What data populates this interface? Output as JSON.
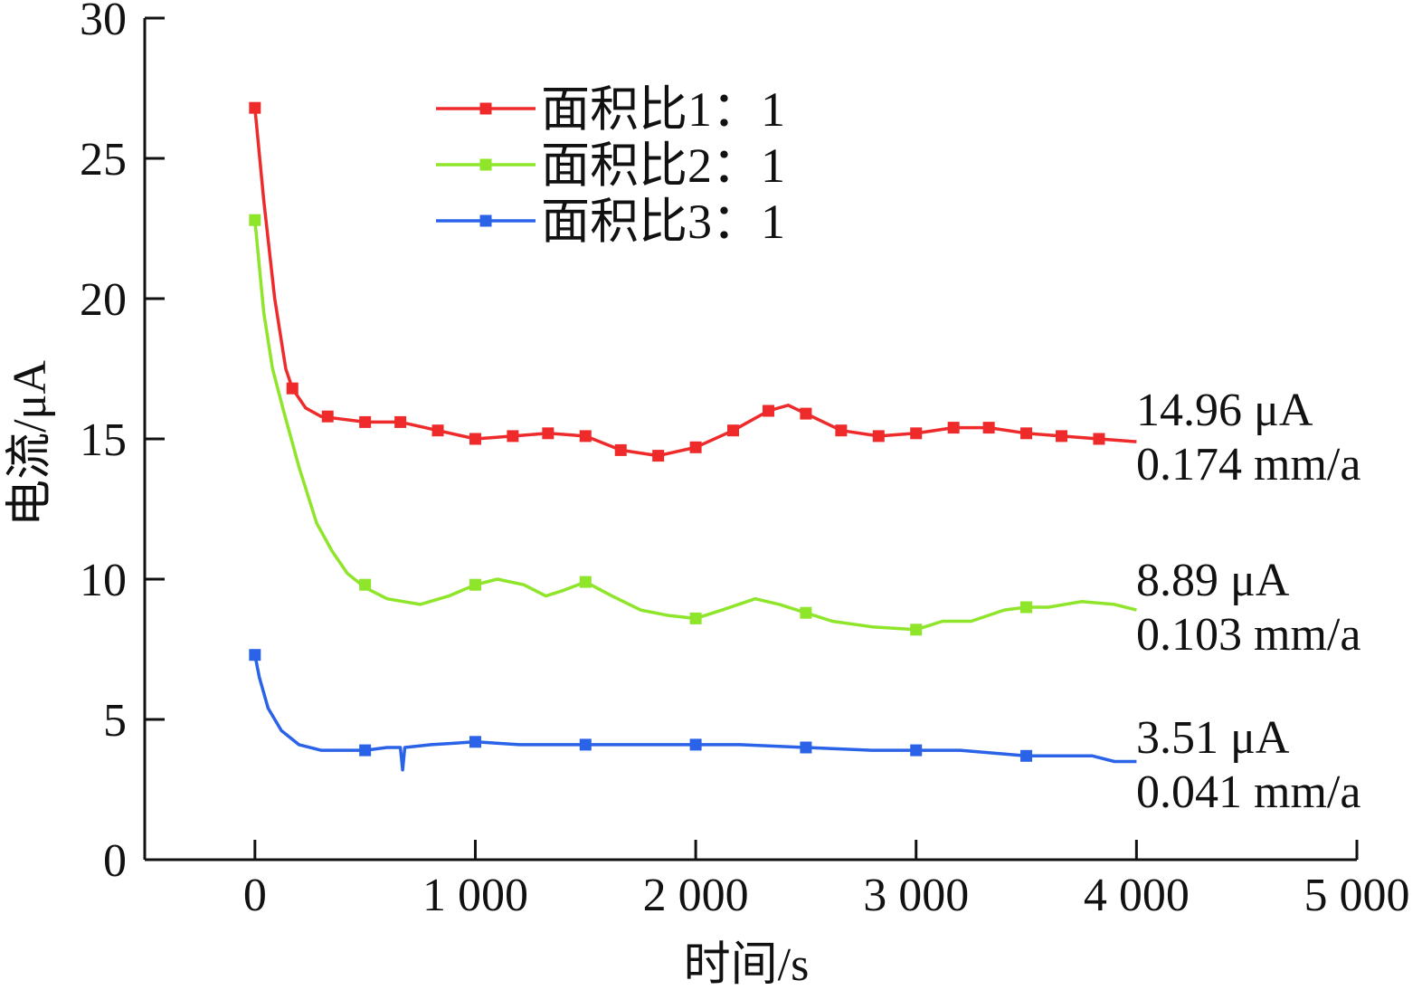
{
  "chart_data": {
    "type": "line",
    "title": "",
    "xlabel": "时间/s",
    "ylabel": "电流/μA",
    "xlim": [
      -500,
      5000
    ],
    "ylim": [
      0,
      30
    ],
    "x_ticks": [
      0,
      1000,
      2000,
      3000,
      4000,
      5000
    ],
    "x_tick_labels": [
      "0",
      "1 000",
      "2 000",
      "3 000",
      "4 000",
      "5 000"
    ],
    "y_ticks": [
      0,
      5,
      10,
      15,
      20,
      25,
      30
    ],
    "y_tick_labels": [
      "0",
      "5",
      "10",
      "15",
      "20",
      "25",
      "30"
    ],
    "grid": false,
    "legend_position": "top-center",
    "series": [
      {
        "name": "面积比1：1",
        "color": "#ee2a2a",
        "marker": "square",
        "line": [
          [
            0,
            26.8
          ],
          [
            40,
            23.5
          ],
          [
            90,
            20
          ],
          [
            140,
            17.5
          ],
          [
            170,
            16.8
          ],
          [
            230,
            16.1
          ],
          [
            300,
            15.8
          ],
          [
            400,
            15.7
          ],
          [
            500,
            15.6
          ],
          [
            660,
            15.6
          ],
          [
            830,
            15.3
          ],
          [
            1000,
            15.0
          ],
          [
            1170,
            15.1
          ],
          [
            1330,
            15.2
          ],
          [
            1500,
            15.1
          ],
          [
            1660,
            14.6
          ],
          [
            1830,
            14.4
          ],
          [
            2000,
            14.7
          ],
          [
            2170,
            15.3
          ],
          [
            2330,
            16.0
          ],
          [
            2420,
            16.2
          ],
          [
            2500,
            15.9
          ],
          [
            2660,
            15.3
          ],
          [
            2830,
            15.1
          ],
          [
            3000,
            15.2
          ],
          [
            3170,
            15.4
          ],
          [
            3330,
            15.4
          ],
          [
            3500,
            15.2
          ],
          [
            3660,
            15.1
          ],
          [
            3830,
            15.0
          ],
          [
            4000,
            14.9
          ]
        ],
        "markers": [
          [
            0,
            26.8
          ],
          [
            170,
            16.8
          ],
          [
            330,
            15.8
          ],
          [
            500,
            15.6
          ],
          [
            660,
            15.6
          ],
          [
            830,
            15.3
          ],
          [
            1000,
            15.0
          ],
          [
            1170,
            15.1
          ],
          [
            1330,
            15.2
          ],
          [
            1500,
            15.1
          ],
          [
            1660,
            14.6
          ],
          [
            1830,
            14.4
          ],
          [
            2000,
            14.7
          ],
          [
            2170,
            15.3
          ],
          [
            2330,
            16.0
          ],
          [
            2500,
            15.9
          ],
          [
            2660,
            15.3
          ],
          [
            2830,
            15.1
          ],
          [
            3000,
            15.2
          ],
          [
            3170,
            15.4
          ],
          [
            3330,
            15.4
          ],
          [
            3500,
            15.2
          ],
          [
            3660,
            15.1
          ],
          [
            3830,
            15.0
          ]
        ]
      },
      {
        "name": "面积比2：1",
        "color": "#8ee52a",
        "marker": "square",
        "line": [
          [
            0,
            22.8
          ],
          [
            40,
            19.5
          ],
          [
            80,
            17.5
          ],
          [
            130,
            16
          ],
          [
            200,
            14
          ],
          [
            280,
            12
          ],
          [
            350,
            11
          ],
          [
            420,
            10.2
          ],
          [
            500,
            9.7
          ],
          [
            600,
            9.3
          ],
          [
            750,
            9.1
          ],
          [
            880,
            9.4
          ],
          [
            1000,
            9.8
          ],
          [
            1100,
            10.0
          ],
          [
            1220,
            9.8
          ],
          [
            1320,
            9.4
          ],
          [
            1400,
            9.6
          ],
          [
            1500,
            9.9
          ],
          [
            1620,
            9.4
          ],
          [
            1750,
            8.9
          ],
          [
            1880,
            8.7
          ],
          [
            2000,
            8.6
          ],
          [
            2120,
            8.9
          ],
          [
            2270,
            9.3
          ],
          [
            2380,
            9.1
          ],
          [
            2500,
            8.8
          ],
          [
            2620,
            8.5
          ],
          [
            2800,
            8.3
          ],
          [
            3000,
            8.2
          ],
          [
            3120,
            8.5
          ],
          [
            3250,
            8.5
          ],
          [
            3400,
            8.9
          ],
          [
            3500,
            9.0
          ],
          [
            3600,
            9.0
          ],
          [
            3750,
            9.2
          ],
          [
            3900,
            9.1
          ],
          [
            4000,
            8.9
          ]
        ],
        "markers": [
          [
            0,
            22.8
          ],
          [
            500,
            9.8
          ],
          [
            1000,
            9.8
          ],
          [
            1500,
            9.9
          ],
          [
            2000,
            8.6
          ],
          [
            2500,
            8.8
          ],
          [
            3000,
            8.2
          ],
          [
            3500,
            9.0
          ]
        ]
      },
      {
        "name": "面积比3：1",
        "color": "#2a62e8",
        "marker": "square",
        "line": [
          [
            0,
            7.3
          ],
          [
            20,
            6.5
          ],
          [
            60,
            5.4
          ],
          [
            120,
            4.6
          ],
          [
            200,
            4.1
          ],
          [
            300,
            3.9
          ],
          [
            500,
            3.9
          ],
          [
            600,
            4.0
          ],
          [
            660,
            4.0
          ],
          [
            670,
            3.2
          ],
          [
            680,
            4.0
          ],
          [
            800,
            4.1
          ],
          [
            1000,
            4.2
          ],
          [
            1200,
            4.1
          ],
          [
            1500,
            4.1
          ],
          [
            2000,
            4.1
          ],
          [
            2200,
            4.1
          ],
          [
            2500,
            4.0
          ],
          [
            2800,
            3.9
          ],
          [
            3000,
            3.9
          ],
          [
            3200,
            3.9
          ],
          [
            3500,
            3.7
          ],
          [
            3800,
            3.7
          ],
          [
            3900,
            3.5
          ],
          [
            4000,
            3.5
          ]
        ],
        "markers": [
          [
            0,
            7.3
          ],
          [
            500,
            3.9
          ],
          [
            1000,
            4.2
          ],
          [
            1500,
            4.1
          ],
          [
            2000,
            4.1
          ],
          [
            2500,
            4.0
          ],
          [
            3000,
            3.9
          ],
          [
            3500,
            3.7
          ]
        ]
      }
    ],
    "annotations": [
      {
        "current": "14.96 μA",
        "rate": "0.174 mm/a"
      },
      {
        "current": "8.89 μA",
        "rate": "0.103 mm/a"
      },
      {
        "current": "3.51 μA",
        "rate": "0.041 mm/a"
      }
    ]
  }
}
